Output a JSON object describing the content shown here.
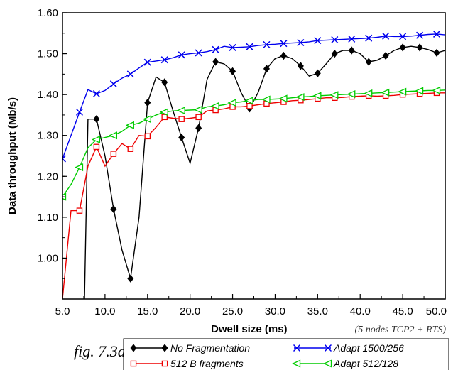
{
  "chart_data": {
    "type": "line",
    "xlabel": "Dwell size (ms)",
    "ylabel": "Data throughput (Mb/s)",
    "note": "(5 nodes TCP2 + RTS)",
    "xlim": [
      5,
      50
    ],
    "ylim": [
      0.9,
      1.6
    ],
    "x_ticks": [
      "5.0",
      "10.0",
      "15.0",
      "20.0",
      "25.0",
      "30.0",
      "35.0",
      "40.0",
      "45.0",
      "50.0"
    ],
    "y_ticks": [
      "1.00",
      "1.10",
      "1.20",
      "1.30",
      "1.40",
      "1.50",
      "1.60"
    ],
    "grid": false,
    "legend_placement": "bottom",
    "series": [
      {
        "name": "No Fragmentation",
        "color": "#000000",
        "marker": "diamond",
        "points": [
          [
            7.5,
            0.8
          ],
          [
            8,
            1.34
          ],
          [
            8.5,
            1.34
          ],
          [
            9,
            1.34
          ],
          [
            10,
            1.25
          ],
          [
            11,
            1.12
          ],
          [
            12,
            1.02
          ],
          [
            13,
            0.95
          ],
          [
            14,
            1.1
          ],
          [
            15,
            1.38
          ],
          [
            16,
            1.443
          ],
          [
            17,
            1.43
          ],
          [
            18,
            1.36
          ],
          [
            19,
            1.295
          ],
          [
            20,
            1.232
          ],
          [
            21,
            1.318
          ],
          [
            22,
            1.437
          ],
          [
            23,
            1.48
          ],
          [
            24,
            1.475
          ],
          [
            25,
            1.457
          ],
          [
            26,
            1.405
          ],
          [
            27,
            1.366
          ],
          [
            28,
            1.405
          ],
          [
            29,
            1.463
          ],
          [
            30,
            1.488
          ],
          [
            31,
            1.495
          ],
          [
            32,
            1.488
          ],
          [
            33,
            1.47
          ],
          [
            34,
            1.445
          ],
          [
            35,
            1.452
          ],
          [
            36,
            1.475
          ],
          [
            37,
            1.5
          ],
          [
            38,
            1.508
          ],
          [
            39,
            1.508
          ],
          [
            40,
            1.5
          ],
          [
            41,
            1.48
          ],
          [
            42,
            1.484
          ],
          [
            43,
            1.495
          ],
          [
            44,
            1.508
          ],
          [
            45,
            1.515
          ],
          [
            46,
            1.518
          ],
          [
            47,
            1.515
          ],
          [
            48,
            1.51
          ],
          [
            49,
            1.502
          ],
          [
            50,
            1.508
          ]
        ],
        "marked_x": [
          9,
          11,
          13,
          15,
          17,
          19,
          21,
          23,
          25,
          27,
          29,
          31,
          33,
          35,
          37,
          39,
          41,
          43,
          45,
          47,
          49
        ]
      },
      {
        "name": "Adapt 1500/256",
        "color": "#0000ee",
        "marker": "x",
        "points": [
          [
            5,
            1.243
          ],
          [
            6,
            1.3
          ],
          [
            7,
            1.357
          ],
          [
            8,
            1.412
          ],
          [
            9,
            1.402
          ],
          [
            10,
            1.41
          ],
          [
            11,
            1.426
          ],
          [
            12,
            1.44
          ],
          [
            13,
            1.45
          ],
          [
            14,
            1.465
          ],
          [
            15,
            1.479
          ],
          [
            16,
            1.482
          ],
          [
            17,
            1.485
          ],
          [
            18,
            1.49
          ],
          [
            19,
            1.497
          ],
          [
            20,
            1.5
          ],
          [
            21,
            1.502
          ],
          [
            22,
            1.505
          ],
          [
            23,
            1.51
          ],
          [
            24,
            1.518
          ],
          [
            25,
            1.515
          ],
          [
            26,
            1.516
          ],
          [
            27,
            1.517
          ],
          [
            28,
            1.52
          ],
          [
            29,
            1.522
          ],
          [
            30,
            1.523
          ],
          [
            31,
            1.525
          ],
          [
            32,
            1.526
          ],
          [
            33,
            1.527
          ],
          [
            34,
            1.529
          ],
          [
            35,
            1.532
          ],
          [
            36,
            1.533
          ],
          [
            37,
            1.534
          ],
          [
            38,
            1.535
          ],
          [
            39,
            1.536
          ],
          [
            40,
            1.537
          ],
          [
            41,
            1.538
          ],
          [
            42,
            1.54
          ],
          [
            43,
            1.543
          ],
          [
            44,
            1.542
          ],
          [
            45,
            1.542
          ],
          [
            46,
            1.543
          ],
          [
            47,
            1.545
          ],
          [
            48,
            1.547
          ],
          [
            49,
            1.548
          ],
          [
            50,
            1.546
          ]
        ],
        "marked_x": [
          5,
          7,
          9,
          11,
          13,
          15,
          17,
          19,
          21,
          23,
          25,
          27,
          29,
          31,
          33,
          35,
          37,
          39,
          41,
          43,
          45,
          47,
          49
        ]
      },
      {
        "name": "512 B fragments",
        "color": "#ee0000",
        "marker": "square",
        "points": [
          [
            5,
            0.9
          ],
          [
            6,
            1.116
          ],
          [
            7,
            1.116
          ],
          [
            8,
            1.225
          ],
          [
            9,
            1.272
          ],
          [
            10,
            1.225
          ],
          [
            11,
            1.255
          ],
          [
            12,
            1.28
          ],
          [
            13,
            1.267
          ],
          [
            14,
            1.3
          ],
          [
            15,
            1.298
          ],
          [
            16,
            1.32
          ],
          [
            17,
            1.345
          ],
          [
            18,
            1.342
          ],
          [
            19,
            1.34
          ],
          [
            20,
            1.342
          ],
          [
            21,
            1.345
          ],
          [
            22,
            1.36
          ],
          [
            23,
            1.362
          ],
          [
            24,
            1.365
          ],
          [
            25,
            1.37
          ],
          [
            26,
            1.37
          ],
          [
            27,
            1.372
          ],
          [
            28,
            1.375
          ],
          [
            29,
            1.378
          ],
          [
            30,
            1.38
          ],
          [
            31,
            1.382
          ],
          [
            32,
            1.385
          ],
          [
            33,
            1.386
          ],
          [
            34,
            1.388
          ],
          [
            35,
            1.39
          ],
          [
            36,
            1.392
          ],
          [
            37,
            1.392
          ],
          [
            38,
            1.393
          ],
          [
            39,
            1.395
          ],
          [
            40,
            1.396
          ],
          [
            41,
            1.397
          ],
          [
            42,
            1.396
          ],
          [
            43,
            1.397
          ],
          [
            44,
            1.398
          ],
          [
            45,
            1.4
          ],
          [
            46,
            1.401
          ],
          [
            47,
            1.402
          ],
          [
            48,
            1.403
          ],
          [
            49,
            1.404
          ],
          [
            50,
            1.404
          ]
        ],
        "marked_x": [
          7,
          9,
          11,
          13,
          15,
          17,
          19,
          21,
          23,
          25,
          27,
          29,
          31,
          33,
          35,
          37,
          39,
          41,
          43,
          45,
          47,
          49
        ]
      },
      {
        "name": "Adapt 512/128",
        "color": "#00cc00",
        "marker": "triangle-left",
        "points": [
          [
            5,
            1.15
          ],
          [
            6,
            1.18
          ],
          [
            7,
            1.222
          ],
          [
            8,
            1.27
          ],
          [
            9,
            1.29
          ],
          [
            10,
            1.295
          ],
          [
            11,
            1.3
          ],
          [
            12,
            1.31
          ],
          [
            13,
            1.325
          ],
          [
            14,
            1.33
          ],
          [
            15,
            1.34
          ],
          [
            16,
            1.35
          ],
          [
            17,
            1.357
          ],
          [
            18,
            1.36
          ],
          [
            19,
            1.361
          ],
          [
            20,
            1.362
          ],
          [
            21,
            1.363
          ],
          [
            22,
            1.37
          ],
          [
            23,
            1.372
          ],
          [
            24,
            1.375
          ],
          [
            25,
            1.38
          ],
          [
            26,
            1.382
          ],
          [
            27,
            1.385
          ],
          [
            28,
            1.388
          ],
          [
            29,
            1.388
          ],
          [
            30,
            1.389
          ],
          [
            31,
            1.39
          ],
          [
            32,
            1.392
          ],
          [
            33,
            1.394
          ],
          [
            34,
            1.395
          ],
          [
            35,
            1.397
          ],
          [
            36,
            1.398
          ],
          [
            37,
            1.399
          ],
          [
            38,
            1.4
          ],
          [
            39,
            1.401
          ],
          [
            40,
            1.402
          ],
          [
            41,
            1.403
          ],
          [
            42,
            1.404
          ],
          [
            43,
            1.405
          ],
          [
            44,
            1.406
          ],
          [
            45,
            1.407
          ],
          [
            46,
            1.408
          ],
          [
            47,
            1.409
          ],
          [
            48,
            1.41
          ],
          [
            49,
            1.41
          ],
          [
            50,
            1.411
          ]
        ],
        "marked_x": [
          5,
          7,
          9,
          11,
          13,
          15,
          17,
          19,
          21,
          23,
          25,
          27,
          29,
          31,
          33,
          35,
          37,
          39,
          41,
          43,
          45,
          47,
          49
        ]
      }
    ]
  },
  "caption": "fig. 7.3a"
}
